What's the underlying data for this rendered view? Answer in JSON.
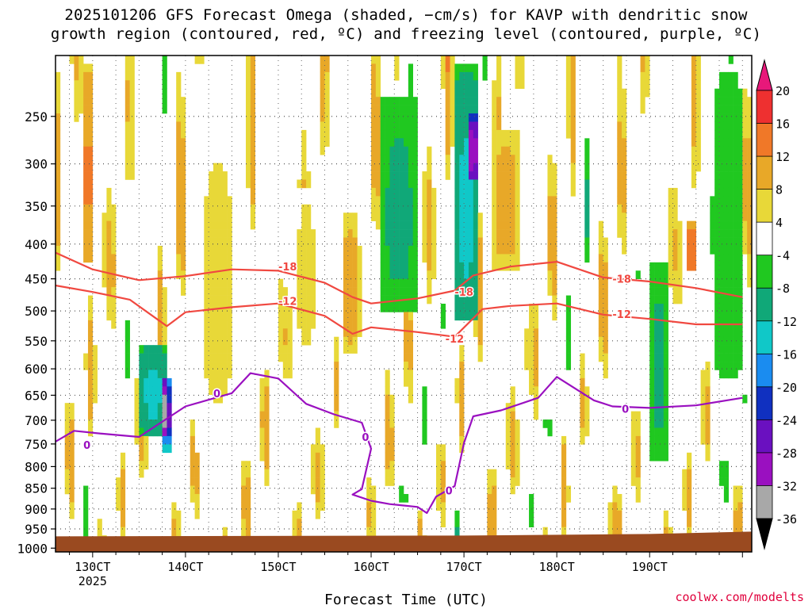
{
  "title_line1": "2025101206 GFS Forecast Omega (shaded, −cm/s) for KAVP with dendritic snow",
  "title_line2": "growth region (contoured, red, ºC) and freezing level (contoured, purple, ºC)",
  "credit": "coolwx.com/modelts",
  "chart_data": {
    "type": "heatmap",
    "xlabel": "Forecast Time (UTC)",
    "ylabel": "",
    "x_ticks": [
      "130CT",
      "140CT",
      "150CT",
      "160CT",
      "170CT",
      "180CT",
      "190CT"
    ],
    "x_tick_sub": "2025",
    "x_range_days": [
      12.6,
      20.1
    ],
    "y_ticks": [
      250,
      300,
      350,
      400,
      450,
      500,
      550,
      600,
      650,
      700,
      750,
      800,
      850,
      900,
      950,
      1000
    ],
    "y_range_hpa": [
      195,
      1010
    ],
    "y_scale": "pressure (hPa, inverted)",
    "grid": true,
    "colorbar": {
      "labels": [
        20,
        16,
        12,
        8,
        4,
        -4,
        -8,
        -12,
        -16,
        -20,
        -24,
        -28,
        -32,
        -36
      ],
      "colors": [
        "#e8187a",
        "#ee3030",
        "#f07828",
        "#e8a828",
        "#e8d838",
        "#ffffff",
        "#20c820",
        "#10a878",
        "#10c8c8",
        "#1a8cf0",
        "#1030c0",
        "#6a10c0",
        "#9a10c0",
        "#a8a8a8",
        "#000000"
      ]
    },
    "series": [
      {
        "name": "-18",
        "color": "#f04840",
        "x": [
          12.6,
          13.0,
          13.5,
          14.0,
          14.5,
          15.0,
          15.5,
          15.8,
          16.0,
          16.5,
          16.9,
          17.1,
          17.5,
          18.0,
          18.5,
          19.0,
          19.5,
          20.0
        ],
        "y": [
          412,
          436,
          452,
          446,
          436,
          438,
          456,
          478,
          488,
          480,
          468,
          445,
          432,
          425,
          448,
          454,
          464,
          478
        ],
        "labels": [
          {
            "x": 15.0,
            "y": 432,
            "text": "-18"
          },
          {
            "x": 16.9,
            "y": 470,
            "text": "-18"
          },
          {
            "x": 18.6,
            "y": 450,
            "text": "-18"
          }
        ]
      },
      {
        "name": "-12",
        "color": "#f04840",
        "x": [
          12.6,
          13.0,
          13.4,
          13.8,
          14.0,
          14.5,
          15.0,
          15.5,
          15.8,
          16.0,
          16.5,
          16.9,
          17.2,
          17.5,
          18.0,
          18.5,
          19.0,
          19.5,
          20.0
        ],
        "y": [
          460,
          470,
          482,
          525,
          502,
          494,
          488,
          508,
          538,
          527,
          535,
          543,
          497,
          492,
          488,
          506,
          513,
          522,
          522
        ],
        "labels": [
          {
            "x": 15.0,
            "y": 484,
            "text": "-12"
          },
          {
            "x": 16.8,
            "y": 546,
            "text": "-12"
          },
          {
            "x": 18.6,
            "y": 505,
            "text": "-12"
          }
        ]
      },
      {
        "name": "0",
        "color": "#9a10c0",
        "x": [
          12.6,
          12.8,
          13.1,
          13.5,
          14.0,
          14.5,
          14.7,
          15.0,
          15.3,
          15.6,
          15.9,
          16.0,
          15.9,
          15.8,
          16.0,
          16.2,
          16.5,
          16.6,
          16.7,
          16.9,
          17.0,
          17.1,
          17.4,
          17.8,
          18.0,
          18.4,
          18.6,
          19.0,
          19.5,
          20.0
        ],
        "y": [
          745,
          722,
          728,
          735,
          672,
          646,
          608,
          618,
          667,
          688,
          705,
          760,
          852,
          865,
          880,
          888,
          895,
          910,
          870,
          845,
          748,
          692,
          680,
          655,
          615,
          660,
          672,
          675,
          670,
          655
        ],
        "labels": [
          {
            "x": 12.9,
            "y": 752,
            "text": "0"
          },
          {
            "x": 14.3,
            "y": 646,
            "text": "0"
          },
          {
            "x": 15.9,
            "y": 735,
            "text": "0"
          },
          {
            "x": 16.8,
            "y": 855,
            "text": "0"
          },
          {
            "x": 18.7,
            "y": 677,
            "text": "0"
          }
        ]
      }
    ],
    "shading_bands": [
      {
        "x0": 12.9,
        "x1": 13.0,
        "p0": 205,
        "p1": 430,
        "value": 14
      },
      {
        "x0": 13.5,
        "x1": 13.8,
        "p0": 560,
        "p1": 730,
        "value": -14
      },
      {
        "x0": 13.75,
        "x1": 13.85,
        "p0": 620,
        "p1": 760,
        "value": -28
      },
      {
        "x0": 14.1,
        "x1": 14.6,
        "p0": 205,
        "p1": 760,
        "value": 5
      },
      {
        "x0": 15.2,
        "x1": 15.4,
        "p0": 330,
        "p1": 580,
        "value": 6
      },
      {
        "x0": 15.7,
        "x1": 15.85,
        "p0": 360,
        "p1": 570,
        "value": 12
      },
      {
        "x0": 16.1,
        "x1": 16.5,
        "p0": 230,
        "p1": 500,
        "value": -10
      },
      {
        "x0": 16.9,
        "x1": 17.15,
        "p0": 205,
        "p1": 520,
        "value": -14
      },
      {
        "x0": 17.05,
        "x1": 17.15,
        "p0": 250,
        "p1": 320,
        "value": -22
      },
      {
        "x0": 17.3,
        "x1": 17.6,
        "p0": 260,
        "p1": 440,
        "value": 11
      },
      {
        "x0": 19.0,
        "x1": 19.2,
        "p0": 430,
        "p1": 780,
        "value": -10
      },
      {
        "x0": 19.4,
        "x1": 19.5,
        "p0": 370,
        "p1": 440,
        "value": 18
      },
      {
        "x0": 19.7,
        "x1": 20.0,
        "p0": 205,
        "p1": 620,
        "value": -7
      }
    ],
    "ground": {
      "p_top": 965,
      "color": "#9a4a20"
    }
  }
}
